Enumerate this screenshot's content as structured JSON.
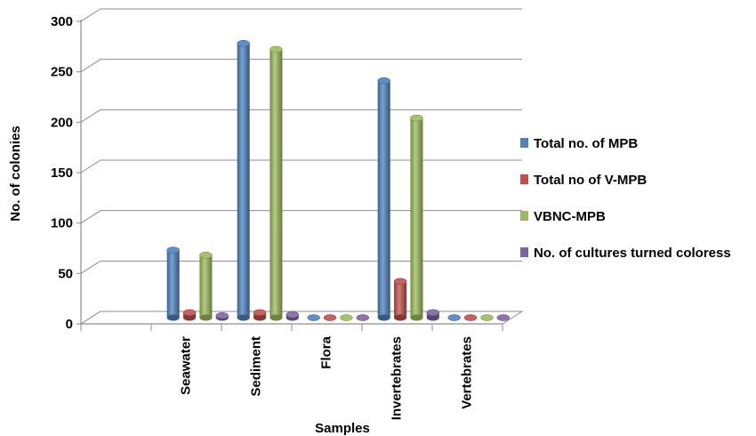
{
  "chart_data": {
    "type": "bar",
    "xlabel": "Samples",
    "ylabel": "No. of colonies",
    "ylim": [
      0,
      300
    ],
    "yticks": [
      0,
      50,
      100,
      150,
      200,
      250,
      300
    ],
    "categories": [
      "",
      "Seawater",
      "Sediment",
      "Flora",
      "Invertebrates",
      "Vertebrates"
    ],
    "series": [
      {
        "name": "Total no. of MPB",
        "color": "#4f81bd",
        "values": [
          null,
          67,
          272,
          0,
          235,
          0
        ]
      },
      {
        "name": "Total no of V-MPB",
        "color": "#c0504d",
        "values": [
          null,
          5,
          5,
          0,
          36,
          0
        ]
      },
      {
        "name": "VBNC-MPB",
        "color": "#9bbb59",
        "values": [
          null,
          62,
          266,
          0,
          198,
          0
        ]
      },
      {
        "name": "No. of cultures turned coloress",
        "color": "#8064a2",
        "values": [
          null,
          2,
          3,
          0,
          5,
          0
        ]
      }
    ],
    "legend_position": "right",
    "grid": true
  }
}
